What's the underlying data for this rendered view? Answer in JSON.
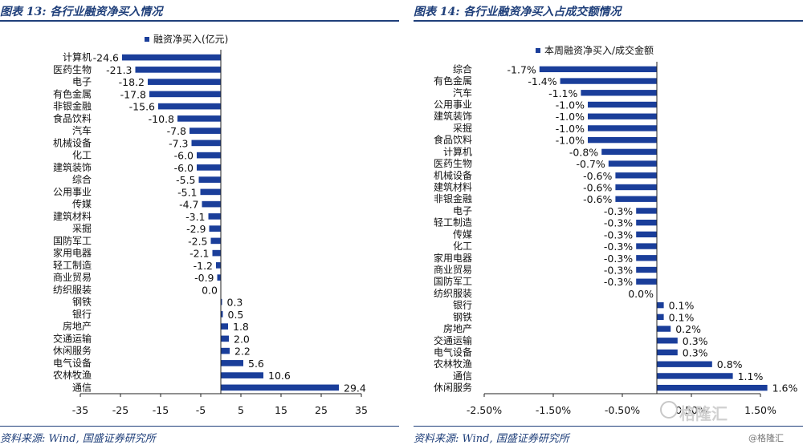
{
  "left": {
    "figure_title": "图表 13:  各行业融资净买入情况",
    "source": "资料来源:  Wind,  国盛证券研究所",
    "legend_label": "融资净买入(亿元)",
    "bar_color": "#1a3e9a",
    "chart_data": {
      "type": "bar",
      "orientation": "horizontal",
      "categories": [
        "计算机",
        "医药生物",
        "电子",
        "有色金属",
        "非银金融",
        "食品饮料",
        "汽车",
        "机械设备",
        "化工",
        "建筑装饰",
        "综合",
        "公用事业",
        "传媒",
        "建筑材料",
        "采掘",
        "国防军工",
        "家用电器",
        "轻工制造",
        "商业贸易",
        "纺织服装",
        "钢铁",
        "银行",
        "房地产",
        "交通运输",
        "休闲服务",
        "电气设备",
        "农林牧渔",
        "通信"
      ],
      "values": [
        -24.6,
        -21.3,
        -18.2,
        -17.8,
        -15.6,
        -10.8,
        -7.8,
        -7.3,
        -6.0,
        -6.0,
        -5.5,
        -5.1,
        -4.7,
        -3.1,
        -2.9,
        -2.5,
        -2.1,
        -1.2,
        -0.9,
        0.0,
        0.3,
        0.5,
        1.8,
        2.0,
        2.2,
        5.6,
        10.6,
        29.4
      ],
      "value_labels": [
        "-24.6",
        "-21.3",
        "-18.2",
        "-17.8",
        "-15.6",
        "-10.8",
        "-7.8",
        "-7.3",
        "-6.0",
        "-6.0",
        "-5.5",
        "-5.1",
        "-4.7",
        "-3.1",
        "-2.9",
        "-2.5",
        "-2.1",
        "-1.2",
        "-0.9",
        "0.0",
        "0.3",
        "0.5",
        "1.8",
        "2.0",
        "2.2",
        "5.6",
        "10.6",
        "29.4"
      ],
      "series": [
        {
          "name": "融资净买入(亿元)"
        }
      ],
      "xlim": [
        -35,
        35
      ],
      "ticks": [
        -35,
        -25,
        -15,
        -5,
        5,
        15,
        25,
        35
      ],
      "tick_labels": [
        "-35",
        "-25",
        "-15",
        "-5",
        "5",
        "15",
        "25",
        "35"
      ],
      "legend_position": "top"
    }
  },
  "right": {
    "figure_title": "图表 14:  各行业融资净买入占成交额情况",
    "source": "资料来源:  Wind,  国盛证券研究所",
    "legend_label": "本周融资净买入/成交金额",
    "bar_color": "#1a3e9a",
    "chart_data": {
      "type": "bar",
      "orientation": "horizontal",
      "categories": [
        "综合",
        "有色金属",
        "汽车",
        "公用事业",
        "建筑装饰",
        "采掘",
        "食品饮料",
        "计算机",
        "医药生物",
        "机械设备",
        "建筑材料",
        "非银金融",
        "电子",
        "轻工制造",
        "传媒",
        "化工",
        "家用电器",
        "商业贸易",
        "国防军工",
        "纺织服装",
        "银行",
        "钢铁",
        "房地产",
        "交通运输",
        "电气设备",
        "农林牧渔",
        "通信",
        "休闲服务"
      ],
      "values": [
        -1.7,
        -1.4,
        -1.1,
        -1.0,
        -1.0,
        -1.0,
        -1.0,
        -0.8,
        -0.7,
        -0.6,
        -0.6,
        -0.6,
        -0.3,
        -0.3,
        -0.3,
        -0.3,
        -0.3,
        -0.3,
        -0.3,
        0.0,
        0.1,
        0.1,
        0.2,
        0.3,
        0.3,
        0.8,
        1.1,
        1.6
      ],
      "value_labels": [
        "-1.7%",
        "-1.4%",
        "-1.1%",
        "-1.0%",
        "-1.0%",
        "-1.0%",
        "-1.0%",
        "-0.8%",
        "-0.7%",
        "-0.6%",
        "-0.6%",
        "-0.6%",
        "-0.3%",
        "-0.3%",
        "-0.3%",
        "-0.3%",
        "-0.3%",
        "-0.3%",
        "-0.3%",
        "0.0%",
        "0.1%",
        "0.1%",
        "0.2%",
        "0.3%",
        "0.3%",
        "0.8%",
        "1.1%",
        "1.6%"
      ],
      "series": [
        {
          "name": "本周融资净买入/成交金额"
        }
      ],
      "xlim": [
        -2.5,
        1.5
      ],
      "ticks": [
        -2.5,
        -1.5,
        -0.5,
        0.5,
        1.5
      ],
      "tick_labels": [
        "-2.50%",
        "-1.50%",
        "-0.50%",
        "0.50%",
        "1.50%"
      ],
      "legend_position": "top"
    }
  },
  "watermark": {
    "text": "格隆汇",
    "credit": "@格隆汇"
  }
}
